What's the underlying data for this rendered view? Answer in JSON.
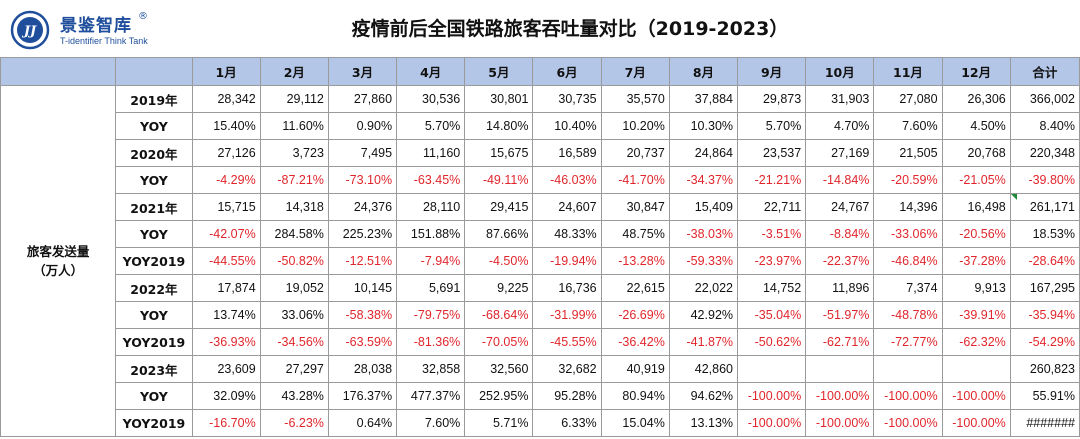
{
  "brand": {
    "name_cn": "景鉴智库",
    "registered": "®",
    "name_en": "T-identifier Think Tank",
    "logo_letters": "JJ",
    "color": "#1f4e9c"
  },
  "title": "疫情前后全国铁路旅客吞吐量对比（2019-2023）",
  "columns": [
    "1月",
    "2月",
    "3月",
    "4月",
    "5月",
    "6月",
    "7月",
    "8月",
    "9月",
    "10月",
    "11月",
    "12月",
    "合计"
  ],
  "metric_label_line1": "旅客发送量",
  "metric_label_line2": "（万人）",
  "colors": {
    "header_bg": "#b4c6e7",
    "negative": "#e0262c",
    "border": "#9a9a9a"
  },
  "rows": [
    {
      "label": "2019年",
      "values": [
        "28,342",
        "29,112",
        "27,860",
        "30,536",
        "30,801",
        "30,735",
        "35,570",
        "37,884",
        "29,873",
        "31,903",
        "27,080",
        "26,306",
        "366,002"
      ]
    },
    {
      "label": "YOY",
      "values": [
        "15.40%",
        "11.60%",
        "0.90%",
        "5.70%",
        "14.80%",
        "10.40%",
        "10.20%",
        "10.30%",
        "5.70%",
        "4.70%",
        "7.60%",
        "4.50%",
        "8.40%"
      ]
    },
    {
      "label": "2020年",
      "values": [
        "27,126",
        "3,723",
        "7,495",
        "11,160",
        "15,675",
        "16,589",
        "20,737",
        "24,864",
        "23,537",
        "27,169",
        "21,505",
        "20,768",
        "220,348"
      ]
    },
    {
      "label": "YOY",
      "values": [
        "-4.29%",
        "-87.21%",
        "-73.10%",
        "-63.45%",
        "-49.11%",
        "-46.03%",
        "-41.70%",
        "-34.37%",
        "-21.21%",
        "-14.84%",
        "-20.59%",
        "-21.05%",
        "-39.80%"
      ]
    },
    {
      "label": "2021年",
      "values": [
        "15,715",
        "14,318",
        "24,376",
        "28,110",
        "29,415",
        "24,607",
        "30,847",
        "15,409",
        "22,711",
        "24,767",
        "14,396",
        "16,498",
        "261,171"
      ]
    },
    {
      "label": "YOY",
      "values": [
        "-42.07%",
        "284.58%",
        "225.23%",
        "151.88%",
        "87.66%",
        "48.33%",
        "48.75%",
        "-38.03%",
        "-3.51%",
        "-8.84%",
        "-33.06%",
        "-20.56%",
        "18.53%"
      ]
    },
    {
      "label": "YOY2019",
      "values": [
        "-44.55%",
        "-50.82%",
        "-12.51%",
        "-7.94%",
        "-4.50%",
        "-19.94%",
        "-13.28%",
        "-59.33%",
        "-23.97%",
        "-22.37%",
        "-46.84%",
        "-37.28%",
        "-28.64%"
      ]
    },
    {
      "label": "2022年",
      "values": [
        "17,874",
        "19,052",
        "10,145",
        "5,691",
        "9,225",
        "16,736",
        "22,615",
        "22,022",
        "14,752",
        "11,896",
        "7,374",
        "9,913",
        "167,295"
      ]
    },
    {
      "label": "YOY",
      "values": [
        "13.74%",
        "33.06%",
        "-58.38%",
        "-79.75%",
        "-68.64%",
        "-31.99%",
        "-26.69%",
        "42.92%",
        "-35.04%",
        "-51.97%",
        "-48.78%",
        "-39.91%",
        "-35.94%"
      ]
    },
    {
      "label": "YOY2019",
      "values": [
        "-36.93%",
        "-34.56%",
        "-63.59%",
        "-81.36%",
        "-70.05%",
        "-45.55%",
        "-36.42%",
        "-41.87%",
        "-50.62%",
        "-62.71%",
        "-72.77%",
        "-62.32%",
        "-54.29%"
      ]
    },
    {
      "label": "2023年",
      "values": [
        "23,609",
        "27,297",
        "28,038",
        "32,858",
        "32,560",
        "32,682",
        "40,919",
        "42,860",
        "",
        "",
        "",
        "",
        "260,823"
      ]
    },
    {
      "label": "YOY",
      "values": [
        "32.09%",
        "43.28%",
        "176.37%",
        "477.37%",
        "252.95%",
        "95.28%",
        "80.94%",
        "94.62%",
        "-100.00%",
        "-100.00%",
        "-100.00%",
        "-100.00%",
        "55.91%"
      ]
    },
    {
      "label": "YOY2019",
      "values": [
        "-16.70%",
        "-6.23%",
        "0.64%",
        "7.60%",
        "5.71%",
        "6.33%",
        "15.04%",
        "13.13%",
        "-100.00%",
        "-100.00%",
        "-100.00%",
        "-100.00%",
        "#######"
      ]
    }
  ]
}
